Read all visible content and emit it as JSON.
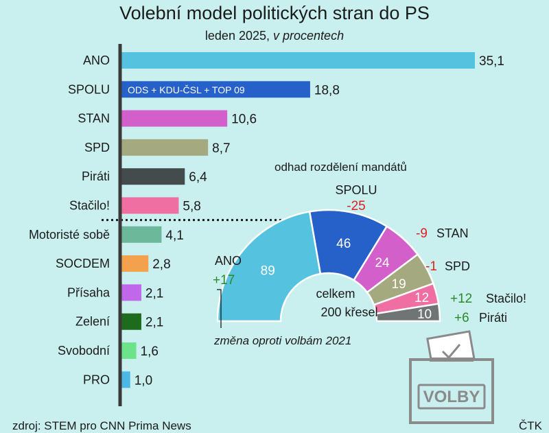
{
  "title": "Volební model politických stran do PS",
  "subtitle_main": "leden 2025,",
  "subtitle_unit": "v procentech",
  "source": "zdroj: STEM pro CNN Prima News",
  "credit": "ČTK",
  "colors": {
    "background": "#c9efee",
    "axis": "#3a3a3a",
    "positive": "#2a8a2a",
    "negative": "#e02020"
  },
  "chart_data": [
    {
      "type": "bar",
      "orientation": "horizontal",
      "categories": [
        "ANO",
        "SPOLU",
        "STAN",
        "SPD",
        "Piráti",
        "Stačilo!",
        "Motoristé sobě",
        "SOCDEM",
        "Přísaha",
        "Zelení",
        "Svobodní",
        "PRO"
      ],
      "values": [
        35.1,
        18.8,
        10.6,
        8.7,
        6.4,
        5.8,
        4.1,
        2.8,
        2.1,
        2.1,
        1.6,
        1.0
      ],
      "value_labels": [
        "35,1",
        "18,8",
        "10,6",
        "8,7",
        "6,4",
        "5,8",
        "4,1",
        "2,8",
        "2,1",
        "2,1",
        "1,6",
        "1,0"
      ],
      "colors": [
        "#55c3e0",
        "#2660c9",
        "#d35fcb",
        "#a4a97f",
        "#444b4c",
        "#f06fa3",
        "#6bb89a",
        "#f4a14d",
        "#c067ea",
        "#1e6b1e",
        "#6ce38b",
        "#4cb8e6"
      ],
      "bar_annotation": {
        "category": "SPOLU",
        "text": "ODS + KDU-ČSL + TOP 09"
      },
      "threshold_after": "Stačilo!",
      "xlim": [
        0,
        35.1
      ]
    },
    {
      "type": "pie",
      "variant": "semicircle",
      "title": "odhad rozdělení mandátů",
      "center_label": [
        "celkem",
        "200 křesel"
      ],
      "categories": [
        "ANO",
        "SPOLU",
        "STAN",
        "SPD",
        "Stačilo!",
        "Piráti"
      ],
      "values": [
        89,
        46,
        24,
        19,
        12,
        10
      ],
      "changes": [
        "+17",
        "-25",
        "-9",
        "-1",
        "+12",
        "+6"
      ],
      "colors": [
        "#55c3e0",
        "#2660c9",
        "#d35fcb",
        "#a4a97f",
        "#f06fa3",
        "#6f7475"
      ],
      "note": "změna oproti volbám 2021"
    }
  ],
  "ballot_box": {
    "label": "VOLBY"
  }
}
